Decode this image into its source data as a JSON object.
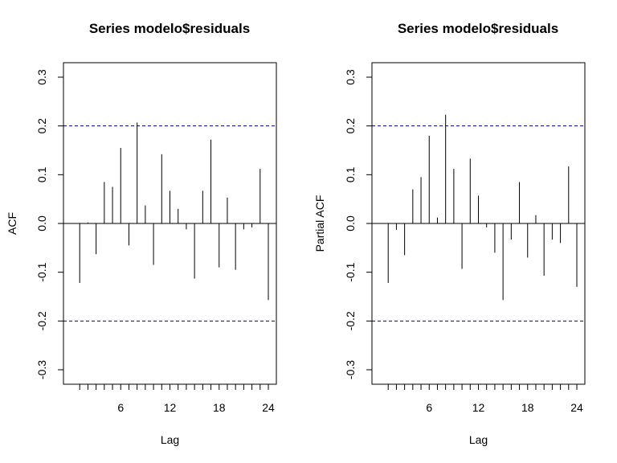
{
  "chart_data": [
    {
      "type": "bar",
      "title": "Series  modelo$residuals",
      "xlabel": "Lag",
      "ylabel": "ACF",
      "x_ticks": [
        6,
        12,
        18,
        24
      ],
      "y_ticks": [
        "-0.3",
        "-0.2",
        "-0.1",
        "0.0",
        "0.1",
        "0.2",
        "0.3"
      ],
      "xlim": [
        0,
        24
      ],
      "ylim": [
        -0.3,
        0.3
      ],
      "confidence_bounds": [
        0.2,
        -0.2
      ],
      "confidence_color": "#00008B",
      "x": [
        1,
        2,
        3,
        4,
        5,
        6,
        7,
        8,
        9,
        10,
        11,
        12,
        13,
        14,
        15,
        16,
        17,
        18,
        19,
        20,
        21,
        22,
        23,
        24
      ],
      "values": [
        -0.122,
        0.002,
        -0.063,
        0.085,
        0.075,
        0.155,
        -0.045,
        0.207,
        0.037,
        -0.085,
        0.142,
        0.067,
        0.03,
        -0.012,
        -0.113,
        0.067,
        0.172,
        -0.09,
        0.053,
        -0.095,
        -0.012,
        -0.008,
        0.112,
        -0.157
      ]
    },
    {
      "type": "bar",
      "title": "Series  modelo$residuals",
      "xlabel": "Lag",
      "ylabel": "Partial ACF",
      "x_ticks": [
        6,
        12,
        18,
        24
      ],
      "y_ticks": [
        "-0.3",
        "-0.2",
        "-0.1",
        "0.0",
        "0.1",
        "0.2",
        "0.3"
      ],
      "xlim": [
        0,
        24
      ],
      "ylim": [
        -0.3,
        0.3
      ],
      "confidence_bounds": [
        0.2,
        -0.2
      ],
      "confidence_color": "#00008B",
      "x": [
        1,
        2,
        3,
        4,
        5,
        6,
        7,
        8,
        9,
        10,
        11,
        12,
        13,
        14,
        15,
        16,
        17,
        18,
        19,
        20,
        21,
        22,
        23,
        24
      ],
      "values": [
        -0.122,
        -0.013,
        -0.065,
        0.07,
        0.095,
        0.18,
        0.012,
        0.223,
        0.112,
        -0.093,
        0.133,
        0.057,
        -0.008,
        -0.06,
        -0.157,
        -0.033,
        0.085,
        -0.07,
        0.017,
        -0.107,
        -0.033,
        -0.04,
        0.117,
        -0.13
      ]
    }
  ]
}
